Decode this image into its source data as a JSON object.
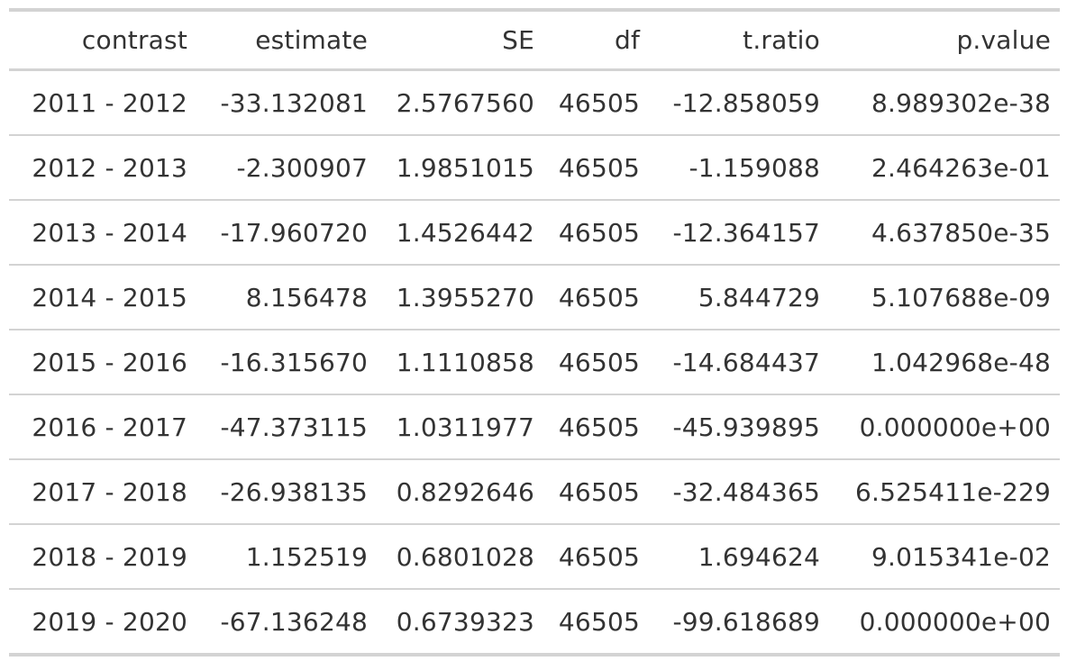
{
  "table": {
    "headers": [
      "contrast",
      "estimate",
      "SE",
      "df",
      "t.ratio",
      "p.value"
    ],
    "rows": [
      [
        "2011 - 2012",
        "-33.132081",
        "2.5767560",
        "46505",
        "-12.858059",
        "8.989302e-38"
      ],
      [
        "2012 - 2013",
        "-2.300907",
        "1.9851015",
        "46505",
        "-1.159088",
        "2.464263e-01"
      ],
      [
        "2013 - 2014",
        "-17.960720",
        "1.4526442",
        "46505",
        "-12.364157",
        "4.637850e-35"
      ],
      [
        "2014 - 2015",
        "8.156478",
        "1.3955270",
        "46505",
        "5.844729",
        "5.107688e-09"
      ],
      [
        "2015 - 2016",
        "-16.315670",
        "1.1110858",
        "46505",
        "-14.684437",
        "1.042968e-48"
      ],
      [
        "2016 - 2017",
        "-47.373115",
        "1.0311977",
        "46505",
        "-45.939895",
        "0.000000e+00"
      ],
      [
        "2017 - 2018",
        "-26.938135",
        "0.8292646",
        "46505",
        "-32.484365",
        "6.525411e-229"
      ],
      [
        "2018 - 2019",
        "1.152519",
        "0.6801028",
        "46505",
        "1.694624",
        "9.015341e-02"
      ],
      [
        "2019 - 2020",
        "-67.136248",
        "0.6739323",
        "46505",
        "-99.618689",
        "0.000000e+00"
      ]
    ]
  }
}
